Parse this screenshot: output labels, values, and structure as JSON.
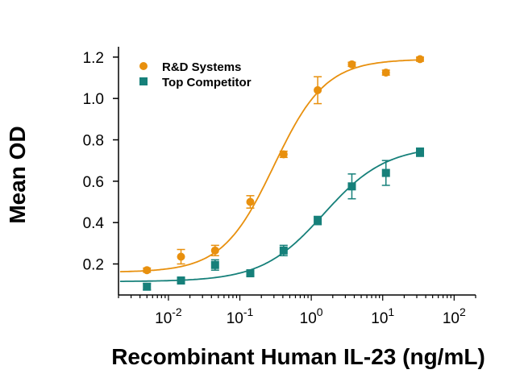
{
  "chart_data": {
    "type": "scatter",
    "xscale": "log",
    "xlim": [
      0.002,
      200
    ],
    "ylim": [
      0.05,
      1.25
    ],
    "xlabel": "Recombinant Human IL-23 (ng/mL)",
    "ylabel": "Mean OD",
    "x_ticks": [
      {
        "value": 0.01,
        "base": "10",
        "exp": "-2"
      },
      {
        "value": 0.1,
        "base": "10",
        "exp": "-1"
      },
      {
        "value": 1,
        "base": "10",
        "exp": "0"
      },
      {
        "value": 10,
        "base": "10",
        "exp": "1"
      },
      {
        "value": 100,
        "base": "10",
        "exp": "2"
      }
    ],
    "y_ticks": [
      "0.2",
      "0.4",
      "0.6",
      "0.8",
      "1.0",
      "1.2"
    ],
    "legend_position": "top-left",
    "series": [
      {
        "name": "R&D Systems",
        "color": "#E8900E",
        "marker": "circle",
        "x": [
          0.005,
          0.015,
          0.045,
          0.14,
          0.41,
          1.23,
          3.7,
          11.1,
          33.3
        ],
        "y": [
          0.17,
          0.235,
          0.265,
          0.5,
          0.73,
          1.04,
          1.165,
          1.125,
          1.19
        ],
        "err": [
          0.01,
          0.035,
          0.025,
          0.03,
          0.015,
          0.065,
          0.01,
          0.012,
          0.01
        ],
        "fit": {
          "bottom": 0.16,
          "top": 1.19,
          "ec50": 0.3,
          "hill": 1.2
        }
      },
      {
        "name": "Top Competitor",
        "color": "#16807A",
        "marker": "square",
        "x": [
          0.005,
          0.015,
          0.045,
          0.14,
          0.41,
          1.23,
          3.7,
          11.1,
          33.3
        ],
        "y": [
          0.09,
          0.12,
          0.195,
          0.155,
          0.265,
          0.41,
          0.575,
          0.64,
          0.74
        ],
        "err": [
          0.015,
          0.012,
          0.025,
          0.012,
          0.025,
          0.02,
          0.06,
          0.06,
          0.02
        ],
        "fit": {
          "bottom": 0.115,
          "top": 0.77,
          "ec50": 1.5,
          "hill": 1.0
        }
      }
    ]
  }
}
